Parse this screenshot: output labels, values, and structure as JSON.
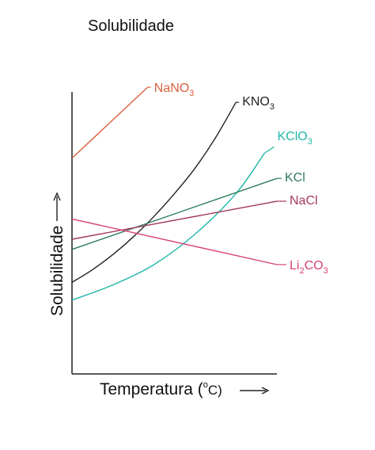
{
  "page_title": "Solubilidade",
  "chart_data": {
    "type": "line",
    "title": "Solubilidade",
    "xlabel_main": "Temperatura (",
    "xlabel_degree": "o",
    "xlabel_unit": "C)",
    "ylabel": "Solubilidade",
    "x_domain": [
      0,
      1
    ],
    "y_domain": [
      0,
      1
    ],
    "grid": false,
    "legend": "none (inline labels)",
    "series": [
      {
        "name": "NaNO3",
        "label_base": "NaNO",
        "label_sub": "3",
        "label_post": "",
        "color": "#d9603d",
        "points": [
          [
            0,
            0.72
          ],
          [
            0.37,
            1.0
          ]
        ]
      },
      {
        "name": "KNO3",
        "label_base": "KNO",
        "label_sub": "3",
        "label_post": "",
        "color": "#222222",
        "points": [
          [
            0,
            0.23
          ],
          [
            0.1,
            0.28
          ],
          [
            0.2,
            0.34
          ],
          [
            0.3,
            0.41
          ],
          [
            0.4,
            0.49
          ],
          [
            0.5,
            0.58
          ],
          [
            0.6,
            0.68
          ],
          [
            0.7,
            0.8
          ],
          [
            0.8,
            0.94
          ]
        ]
      },
      {
        "name": "KClO3",
        "label_base": "KClO",
        "label_sub": "3",
        "label_post": "",
        "color": "#1fb8a8",
        "points": [
          [
            0,
            0.16
          ],
          [
            0.2,
            0.22
          ],
          [
            0.4,
            0.3
          ],
          [
            0.6,
            0.42
          ],
          [
            0.8,
            0.58
          ],
          [
            0.94,
            0.74
          ]
        ]
      },
      {
        "name": "KCl",
        "label_base": "KCl",
        "label_sub": "",
        "label_post": "",
        "color": "#2e7d5a",
        "points": [
          [
            0,
            0.36
          ],
          [
            1.0,
            0.64
          ]
        ]
      },
      {
        "name": "NaCl",
        "label_base": "NaCl",
        "label_sub": "",
        "label_post": "",
        "color": "#a3385a",
        "points": [
          [
            0,
            0.4
          ],
          [
            1.0,
            0.55
          ]
        ]
      },
      {
        "name": "Li2CO3",
        "label_base": "Li",
        "label_sub": "2",
        "label_post": "CO",
        "label_sub2": "3",
        "color": "#d6417a",
        "points": [
          [
            0,
            0.48
          ],
          [
            1.0,
            0.3
          ]
        ]
      }
    ]
  }
}
